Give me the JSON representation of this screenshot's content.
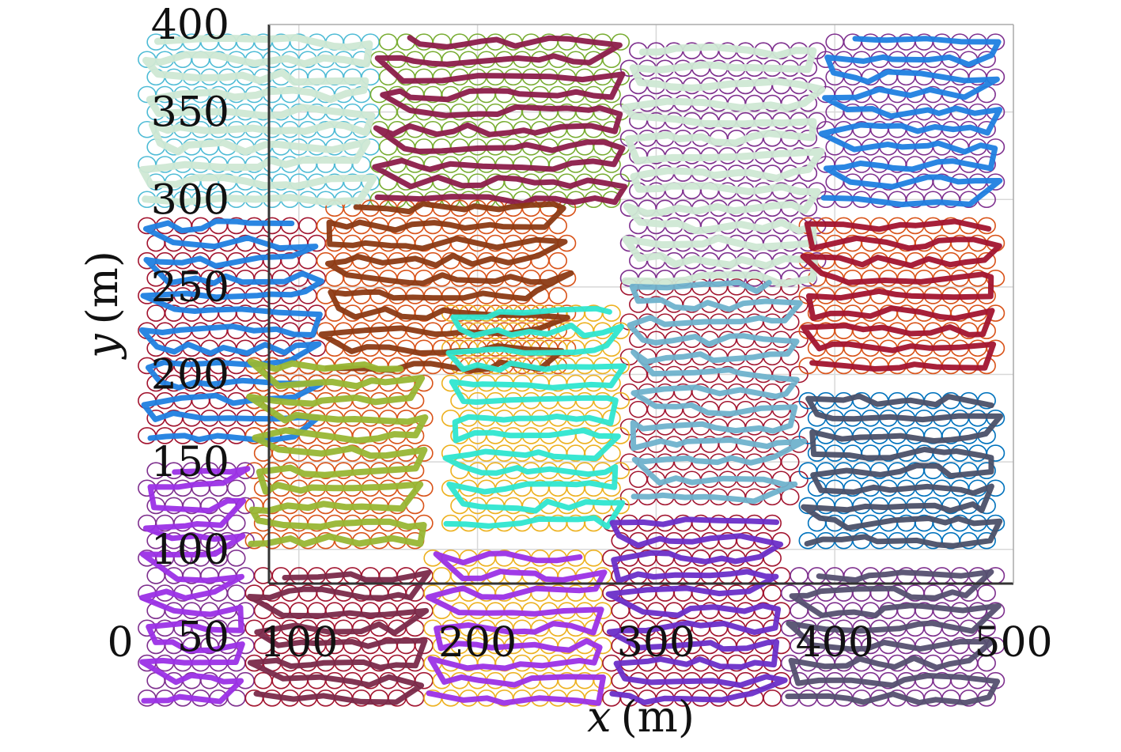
{
  "chart_data": {
    "type": "line",
    "title": "",
    "xlabel": "x (m)",
    "ylabel": "y (m)",
    "xlabel_var": "x",
    "xlabel_unit": "(m)",
    "ylabel_var": "y",
    "ylabel_unit": "(m)",
    "xlim": [
      0,
      500
    ],
    "ylim": [
      0,
      400
    ],
    "xticks": [
      0,
      100,
      200,
      300,
      400,
      500
    ],
    "yticks": [
      50,
      100,
      150,
      200,
      250,
      300,
      350,
      400
    ],
    "xtick_labels": [
      "0",
      "100",
      "200",
      "300",
      "400",
      "500"
    ],
    "ytick_labels": [
      "50",
      "100",
      "150",
      "200",
      "250",
      "300",
      "350",
      "400"
    ],
    "grid": true,
    "legend": "none",
    "regions": [
      {
        "x_range": [
          10,
          140
        ],
        "y_range": [
          295,
          390
        ],
        "circle_color": "#4dbbd5",
        "path_color": "#cfe8d4",
        "path_width": 9
      },
      {
        "x_range": [
          140,
          280
        ],
        "y_range": [
          295,
          390
        ],
        "circle_color": "#77ac30",
        "path_color": "#8c1c4a",
        "path_width": 7
      },
      {
        "x_range": [
          280,
          390
        ],
        "y_range": [
          250,
          390
        ],
        "circle_color": "#7e2f8e",
        "path_color": "#cfe8d4",
        "path_width": 9
      },
      {
        "x_range": [
          390,
          490
        ],
        "y_range": [
          295,
          390
        ],
        "circle_color": "#7e2f8e",
        "path_color": "#1f7fe0",
        "path_width": 7
      },
      {
        "x_range": [
          10,
          110
        ],
        "y_range": [
          160,
          285
        ],
        "circle_color": "#a2142f",
        "path_color": "#1f7fe0",
        "path_width": 7
      },
      {
        "x_range": [
          110,
          250
        ],
        "y_range": [
          200,
          300
        ],
        "circle_color": "#d95319",
        "path_color": "#8b3a14",
        "path_width": 7
      },
      {
        "x_range": [
          280,
          380
        ],
        "y_range": [
          125,
          255
        ],
        "circle_color": "#a2142f",
        "path_color": "#6fb2cc",
        "path_width": 7
      },
      {
        "x_range": [
          380,
          490
        ],
        "y_range": [
          200,
          285
        ],
        "circle_color": "#d95319",
        "path_color": "#a2142f",
        "path_width": 7
      },
      {
        "x_range": [
          70,
          170
        ],
        "y_range": [
          100,
          210
        ],
        "circle_color": "#d95319",
        "path_color": "#98b634",
        "path_width": 8
      },
      {
        "x_range": [
          180,
          280
        ],
        "y_range": [
          110,
          235
        ],
        "circle_color": "#edb120",
        "path_color": "#2ee6d0",
        "path_width": 7
      },
      {
        "x_range": [
          380,
          490
        ],
        "y_range": [
          100,
          185
        ],
        "circle_color": "#0072bd",
        "path_color": "#4b5068",
        "path_width": 7
      },
      {
        "x_range": [
          10,
          70
        ],
        "y_range": [
          10,
          150
        ],
        "circle_color": "#7e2f8e",
        "path_color": "#9b30e6",
        "path_width": 7
      },
      {
        "x_range": [
          70,
          170
        ],
        "y_range": [
          10,
          85
        ],
        "circle_color": "#a2142f",
        "path_color": "#7a2a4a",
        "path_width": 7
      },
      {
        "x_range": [
          170,
          270
        ],
        "y_range": [
          10,
          100
        ],
        "circle_color": "#edb120",
        "path_color": "#9b30e6",
        "path_width": 7
      },
      {
        "x_range": [
          270,
          370
        ],
        "y_range": [
          10,
          120
        ],
        "circle_color": "#a2142f",
        "path_color": "#6a2ec8",
        "path_width": 7
      },
      {
        "x_range": [
          370,
          490
        ],
        "y_range": [
          10,
          90
        ],
        "circle_color": "#7e2f8e",
        "path_color": "#555070",
        "path_width": 7
      }
    ]
  }
}
